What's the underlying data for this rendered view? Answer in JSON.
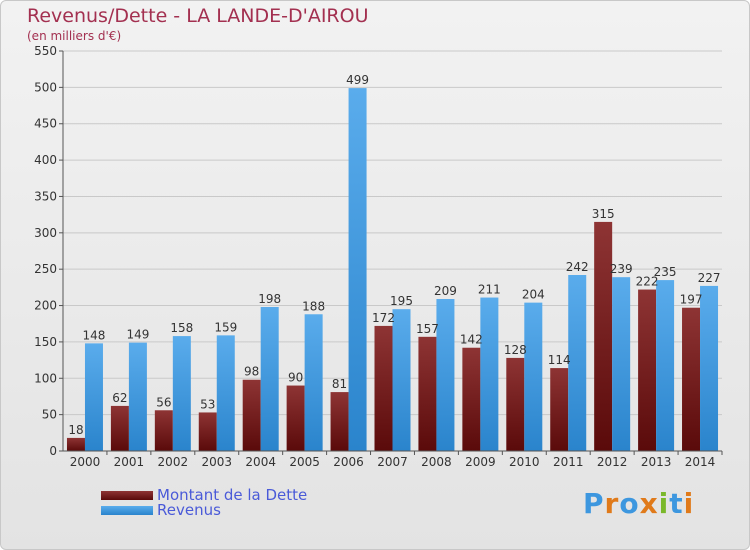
{
  "chart_data": {
    "type": "bar",
    "title": "Revenus/Dette - LA LANDE-D'AIROU",
    "subtitle": "(en milliers d'€)",
    "categories": [
      "2000",
      "2001",
      "2002",
      "2003",
      "2004",
      "2005",
      "2006",
      "2007",
      "2008",
      "2009",
      "2010",
      "2011",
      "2012",
      "2013",
      "2014"
    ],
    "series": [
      {
        "name": "Montant de la Dette",
        "color": "#7a1f1f",
        "values": [
          18,
          62,
          56,
          53,
          98,
          90,
          81,
          172,
          157,
          142,
          128,
          114,
          315,
          222,
          197
        ]
      },
      {
        "name": "Revenus",
        "color": "#3d97df",
        "values": [
          148,
          149,
          158,
          159,
          198,
          188,
          499,
          195,
          209,
          211,
          204,
          242,
          239,
          235,
          227
        ]
      }
    ],
    "ylim": [
      0,
      550
    ],
    "yticks": [
      0,
      50,
      100,
      150,
      200,
      250,
      300,
      350,
      400,
      450,
      500,
      550
    ],
    "grid": true,
    "legend": "bottom-left"
  },
  "logo": {
    "text": "Proxiti",
    "icon": "proxiti-logo"
  }
}
